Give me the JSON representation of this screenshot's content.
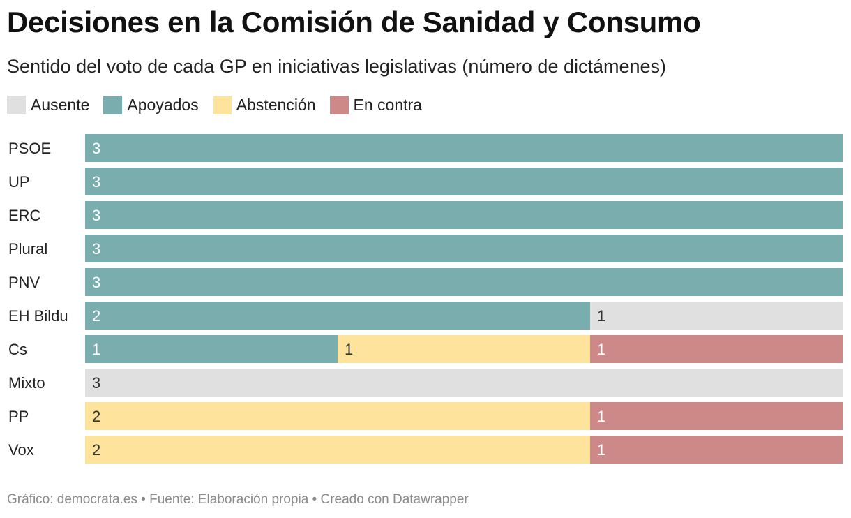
{
  "header": {
    "title": "Decisiones en la Comisión de Sanidad y Consumo",
    "subtitle": "Sentido del voto de cada GP en iniciativas legislativas (número de dictámenes)"
  },
  "legend": [
    {
      "label": "Ausente",
      "color": "#e0e0e0"
    },
    {
      "label": "Apoyados",
      "color": "#7aadad"
    },
    {
      "label": "Abstención",
      "color": "#fde39b"
    },
    {
      "label": "En contra",
      "color": "#cc8987"
    }
  ],
  "chart_data": {
    "type": "bar",
    "orientation": "horizontal",
    "stacked": true,
    "categories": [
      "PSOE",
      "UP",
      "ERC",
      "Plural",
      "PNV",
      "EH Bildu",
      "Cs",
      "Mixto",
      "PP",
      "Vox"
    ],
    "series": [
      {
        "name": "Apoyados",
        "color": "#7aadad",
        "label_color": "#ffffff",
        "values": [
          3,
          3,
          3,
          3,
          3,
          2,
          1,
          0,
          0,
          0
        ]
      },
      {
        "name": "Abstención",
        "color": "#fde39b",
        "label_color": "#333333",
        "values": [
          0,
          0,
          0,
          0,
          0,
          0,
          1,
          0,
          2,
          2
        ]
      },
      {
        "name": "En contra",
        "color": "#cc8987",
        "label_color": "#ffffff",
        "values": [
          0,
          0,
          0,
          0,
          0,
          0,
          1,
          0,
          1,
          1
        ]
      },
      {
        "name": "Ausente",
        "color": "#e0e0e0",
        "label_color": "#333333",
        "values": [
          0,
          0,
          0,
          0,
          0,
          1,
          0,
          3,
          0,
          0
        ]
      }
    ],
    "xlim": [
      0,
      3
    ],
    "grid": false,
    "legend_position": "top-left"
  },
  "footer": {
    "text": "Gráfico: democrata.es • Fuente: Elaboración propia • Creado con Datawrapper"
  }
}
